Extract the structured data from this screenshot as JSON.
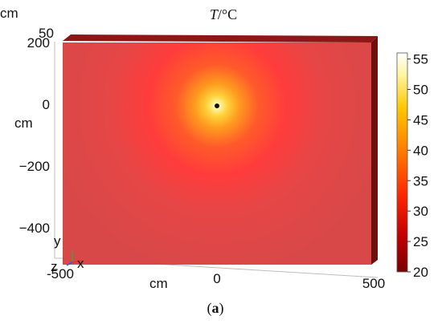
{
  "chart_data": {
    "type": "heatmap",
    "title": "T/°C",
    "title_italic_part": "T",
    "title_rest": "/°C",
    "caption_open": "(",
    "caption_letter": "a",
    "caption_close": ")",
    "colorbar": {
      "min": 20,
      "max": 56,
      "ticks": [
        55,
        50,
        45,
        40,
        35,
        30,
        25,
        20
      ],
      "colormap": [
        "#7a0000",
        "#c40000",
        "#ff2600",
        "#ff7a00",
        "#ffc800",
        "#fff4a0",
        "#ffffff"
      ]
    },
    "y_axis": {
      "unit_label": "cm",
      "ticks": [
        "200",
        "0",
        "−200",
        "−400"
      ],
      "tick_values": [
        200,
        0,
        -200,
        -400
      ]
    },
    "z_axis": {
      "unit_label": "cm",
      "ticks": [
        "50"
      ]
    },
    "x_axis": {
      "unit_label": "cm",
      "ticks": [
        "-500",
        "0",
        "500"
      ],
      "tick_values": [
        -500,
        0,
        500
      ]
    },
    "triad": {
      "y": "y",
      "x": "x",
      "z": "z"
    },
    "field": {
      "background_temperature": 23,
      "peak_temperature": 56,
      "source_x": 0,
      "source_y": 0,
      "domain_x": [
        -500,
        500
      ],
      "domain_y": [
        -500,
        200
      ]
    },
    "grid": false,
    "legend": "right"
  }
}
